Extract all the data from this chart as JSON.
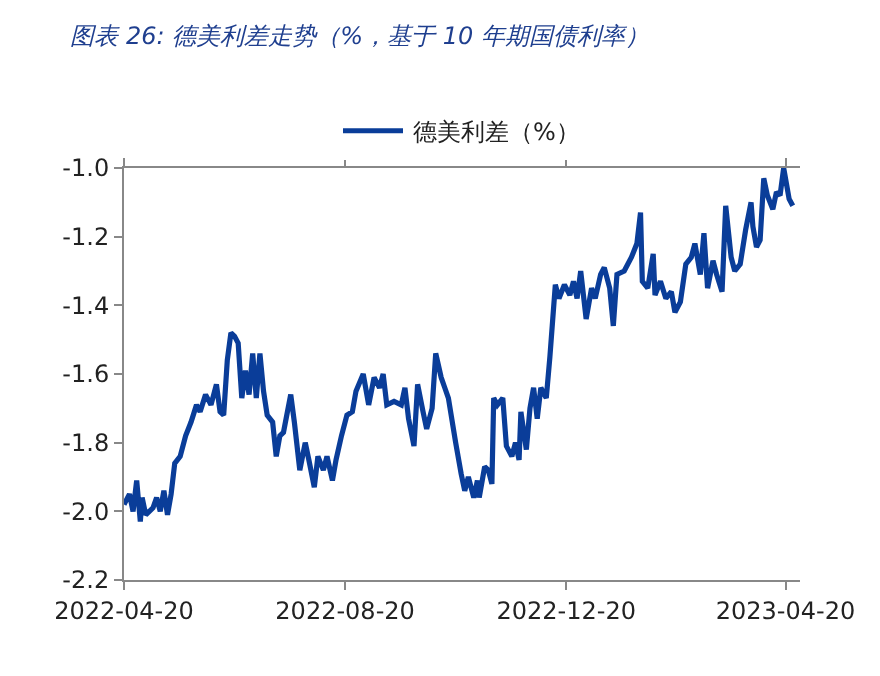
{
  "chart_data": {
    "type": "line",
    "title": "图表 26: 德美利差走势（%，基于 10 年期国债利率）",
    "x": [
      "2022-04-20",
      "2022-04-23",
      "2022-04-25",
      "2022-04-27",
      "2022-04-29",
      "2022-04-30",
      "2022-05-02",
      "2022-05-06",
      "2022-05-08",
      "2022-05-10",
      "2022-05-12",
      "2022-05-14",
      "2022-05-16",
      "2022-05-18",
      "2022-05-21",
      "2022-05-24",
      "2022-05-27",
      "2022-05-30",
      "2022-06-01",
      "2022-06-04",
      "2022-06-07",
      "2022-06-10",
      "2022-06-12",
      "2022-06-14",
      "2022-06-16",
      "2022-06-18",
      "2022-06-20",
      "2022-06-22",
      "2022-06-24",
      "2022-06-26",
      "2022-06-28",
      "2022-06-30",
      "2022-07-02",
      "2022-07-04",
      "2022-07-06",
      "2022-07-08",
      "2022-07-11",
      "2022-07-13",
      "2022-07-15",
      "2022-07-17",
      "2022-07-21",
      "2022-07-23",
      "2022-07-26",
      "2022-07-29",
      "2022-07-31",
      "2022-08-03",
      "2022-08-05",
      "2022-08-08",
      "2022-08-10",
      "2022-08-13",
      "2022-08-15",
      "2022-08-18",
      "2022-08-21",
      "2022-08-24",
      "2022-08-26",
      "2022-08-30",
      "2022-09-02",
      "2022-09-05",
      "2022-09-08",
      "2022-09-10",
      "2022-09-12",
      "2022-09-16",
      "2022-09-20",
      "2022-09-22",
      "2022-09-24",
      "2022-09-27",
      "2022-09-29",
      "2022-10-02",
      "2022-10-04",
      "2022-10-07",
      "2022-10-09",
      "2022-10-12",
      "2022-10-14",
      "2022-10-16",
      "2022-10-20",
      "2022-10-23",
      "2022-10-25",
      "2022-10-27",
      "2022-10-30",
      "2022-11-01",
      "2022-11-02",
      "2022-11-05",
      "2022-11-07",
      "2022-11-09",
      "2022-11-10",
      "2022-11-12",
      "2022-11-15",
      "2022-11-17",
      "2022-11-20",
      "2022-11-22",
      "2022-11-24",
      "2022-11-25",
      "2022-11-28",
      "2022-11-30",
      "2022-12-02",
      "2022-12-04",
      "2022-12-06",
      "2022-12-09",
      "2022-12-11",
      "2022-12-14",
      "2022-12-16",
      "2022-12-19",
      "2022-12-22",
      "2022-12-24",
      "2022-12-26",
      "2022-12-28",
      "2022-12-31",
      "2023-01-03",
      "2023-01-05",
      "2023-01-08",
      "2023-01-10",
      "2023-01-13",
      "2023-01-15",
      "2023-01-17",
      "2023-01-21",
      "2023-01-25",
      "2023-01-28",
      "2023-01-30",
      "2023-01-31",
      "2023-02-03",
      "2023-02-06",
      "2023-02-07",
      "2023-02-10",
      "2023-02-13",
      "2023-02-16",
      "2023-02-18",
      "2023-02-21",
      "2023-02-24",
      "2023-02-27",
      "2023-03-01",
      "2023-03-04",
      "2023-03-06",
      "2023-03-08",
      "2023-03-11",
      "2023-03-13",
      "2023-03-16",
      "2023-03-18",
      "2023-03-21",
      "2023-03-23",
      "2023-03-26",
      "2023-03-29",
      "2023-04-01",
      "2023-04-02",
      "2023-04-04",
      "2023-04-06",
      "2023-04-08",
      "2023-04-10",
      "2023-04-13",
      "2023-04-15",
      "2023-04-17",
      "2023-04-19",
      "2023-04-22",
      "2023-04-24"
    ],
    "series": [
      {
        "name": "德美利差（%）",
        "color": "#0a3d99",
        "values": [
          -1.98,
          -1.95,
          -2.0,
          -1.91,
          -2.03,
          -1.96,
          -2.01,
          -1.99,
          -1.96,
          -2.0,
          -1.94,
          -2.01,
          -1.95,
          -1.86,
          -1.84,
          -1.78,
          -1.74,
          -1.69,
          -1.71,
          -1.66,
          -1.69,
          -1.63,
          -1.71,
          -1.72,
          -1.56,
          -1.48,
          -1.49,
          -1.51,
          -1.67,
          -1.59,
          -1.66,
          -1.54,
          -1.67,
          -1.54,
          -1.65,
          -1.72,
          -1.74,
          -1.84,
          -1.78,
          -1.77,
          -1.66,
          -1.74,
          -1.88,
          -1.8,
          -1.85,
          -1.93,
          -1.84,
          -1.88,
          -1.84,
          -1.91,
          -1.85,
          -1.78,
          -1.72,
          -1.71,
          -1.65,
          -1.6,
          -1.69,
          -1.61,
          -1.64,
          -1.6,
          -1.69,
          -1.68,
          -1.69,
          -1.64,
          -1.73,
          -1.81,
          -1.63,
          -1.71,
          -1.76,
          -1.7,
          -1.54,
          -1.61,
          -1.64,
          -1.67,
          -1.8,
          -1.89,
          -1.94,
          -1.9,
          -1.96,
          -1.91,
          -1.96,
          -1.87,
          -1.88,
          -1.92,
          -1.67,
          -1.69,
          -1.67,
          -1.81,
          -1.84,
          -1.8,
          -1.85,
          -1.71,
          -1.82,
          -1.7,
          -1.64,
          -1.73,
          -1.64,
          -1.67,
          -1.55,
          -1.34,
          -1.38,
          -1.34,
          -1.37,
          -1.33,
          -1.38,
          -1.3,
          -1.44,
          -1.35,
          -1.38,
          -1.31,
          -1.29,
          -1.35,
          -1.46,
          -1.31,
          -1.3,
          -1.26,
          -1.22,
          -1.13,
          -1.33,
          -1.35,
          -1.25,
          -1.37,
          -1.33,
          -1.38,
          -1.36,
          -1.42,
          -1.39,
          -1.28,
          -1.26,
          -1.22,
          -1.31,
          -1.19,
          -1.35,
          -1.27,
          -1.31,
          -1.36,
          -1.11,
          -1.26,
          -1.3,
          -1.28,
          -1.18,
          -1.1,
          -1.17,
          -1.23,
          -1.21,
          -1.03,
          -1.08,
          -1.12,
          -1.07,
          -1.08,
          -1.0,
          -1.09,
          -1.11
        ]
      }
    ],
    "xlim": [
      "2022-04-20",
      "2023-04-28"
    ],
    "xticks": [
      "2022-04-20",
      "2022-08-20",
      "2022-12-20",
      "2023-04-20"
    ],
    "ylim": [
      -2.2,
      -1.0
    ],
    "yticks": [
      {
        "value": -2.2,
        "label": "-2.2"
      },
      {
        "value": -2.0,
        "label": "-2.0"
      },
      {
        "value": -1.8,
        "label": "-1.8"
      },
      {
        "value": -1.6,
        "label": "-1.6"
      },
      {
        "value": -1.4,
        "label": "-1.4"
      },
      {
        "value": -1.2,
        "label": "-1.2"
      },
      {
        "value": -1.0,
        "label": "-1.0"
      }
    ],
    "legend": "top",
    "marker": "none",
    "line_style": "solid"
  }
}
